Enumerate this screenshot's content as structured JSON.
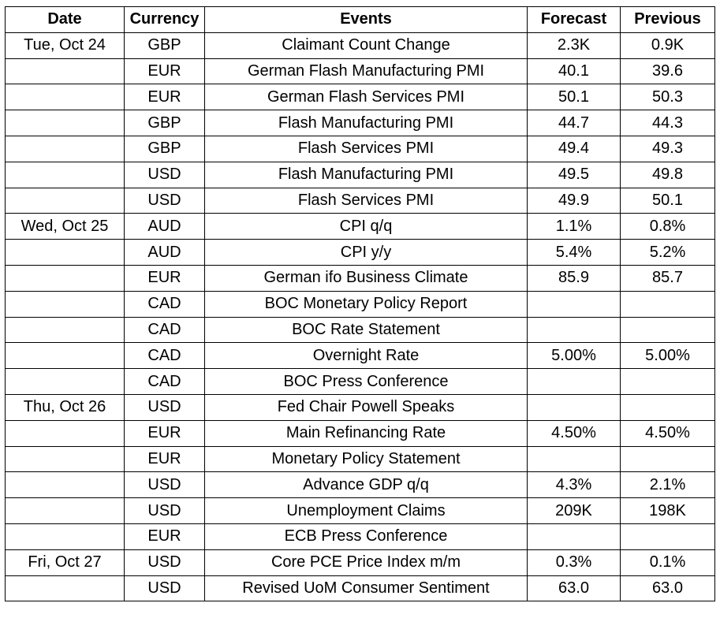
{
  "headers": [
    "Date",
    "Currency",
    "Events",
    "Forecast",
    "Previous"
  ],
  "rows": [
    {
      "date": "Tue, Oct 24",
      "currency": "GBP",
      "event": "Claimant Count Change",
      "forecast": "2.3K",
      "previous": "0.9K"
    },
    {
      "date": "",
      "currency": "EUR",
      "event": "German Flash Manufacturing PMI",
      "forecast": "40.1",
      "previous": "39.6"
    },
    {
      "date": "",
      "currency": "EUR",
      "event": "German Flash Services PMI",
      "forecast": "50.1",
      "previous": "50.3"
    },
    {
      "date": "",
      "currency": "GBP",
      "event": "Flash Manufacturing PMI",
      "forecast": "44.7",
      "previous": "44.3"
    },
    {
      "date": "",
      "currency": "GBP",
      "event": "Flash Services PMI",
      "forecast": "49.4",
      "previous": "49.3"
    },
    {
      "date": "",
      "currency": "USD",
      "event": "Flash Manufacturing PMI",
      "forecast": "49.5",
      "previous": "49.8"
    },
    {
      "date": "",
      "currency": "USD",
      "event": "Flash Services PMI",
      "forecast": "49.9",
      "previous": "50.1"
    },
    {
      "date": "Wed, Oct 25",
      "currency": "AUD",
      "event": "CPI q/q",
      "forecast": "1.1%",
      "previous": "0.8%"
    },
    {
      "date": "",
      "currency": "AUD",
      "event": "CPI y/y",
      "forecast": "5.4%",
      "previous": "5.2%"
    },
    {
      "date": "",
      "currency": "EUR",
      "event": "German ifo Business Climate",
      "forecast": "85.9",
      "previous": "85.7"
    },
    {
      "date": "",
      "currency": "CAD",
      "event": "BOC Monetary Policy Report",
      "forecast": "",
      "previous": ""
    },
    {
      "date": "",
      "currency": "CAD",
      "event": "BOC Rate Statement",
      "forecast": "",
      "previous": ""
    },
    {
      "date": "",
      "currency": "CAD",
      "event": "Overnight Rate",
      "forecast": "5.00%",
      "previous": "5.00%"
    },
    {
      "date": "",
      "currency": "CAD",
      "event": "BOC Press Conference",
      "forecast": "",
      "previous": ""
    },
    {
      "date": "Thu, Oct 26",
      "currency": "USD",
      "event": "Fed Chair Powell Speaks",
      "forecast": "",
      "previous": ""
    },
    {
      "date": "",
      "currency": "EUR",
      "event": "Main Refinancing Rate",
      "forecast": "4.50%",
      "previous": "4.50%"
    },
    {
      "date": "",
      "currency": "EUR",
      "event": "Monetary Policy Statement",
      "forecast": "",
      "previous": ""
    },
    {
      "date": "",
      "currency": "USD",
      "event": "Advance GDP q/q",
      "forecast": "4.3%",
      "previous": "2.1%"
    },
    {
      "date": "",
      "currency": "USD",
      "event": "Unemployment Claims",
      "forecast": "209K",
      "previous": "198K"
    },
    {
      "date": "",
      "currency": "EUR",
      "event": "ECB Press Conference",
      "forecast": "",
      "previous": ""
    },
    {
      "date": "Fri, Oct 27",
      "currency": "USD",
      "event": "Core PCE Price Index m/m",
      "forecast": "0.3%",
      "previous": "0.1%"
    },
    {
      "date": "",
      "currency": "USD",
      "event": "Revised UoM Consumer Sentiment",
      "forecast": "63.0",
      "previous": "63.0"
    }
  ]
}
